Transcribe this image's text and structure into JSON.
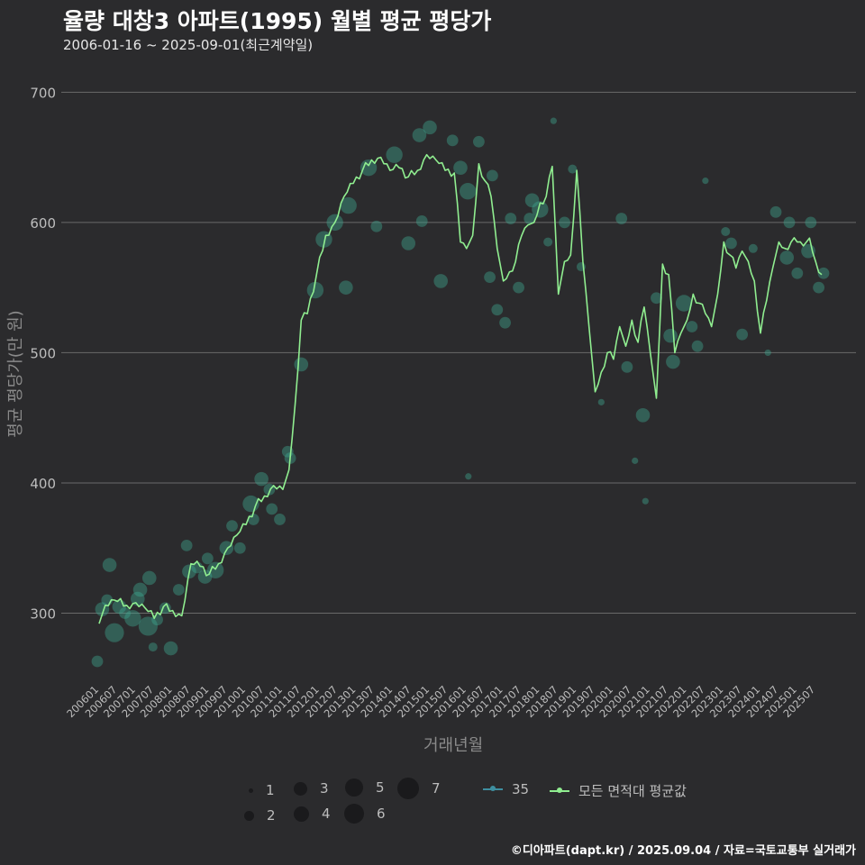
{
  "title": "율량 대창3 아파트(1995) 월별 평균 평당가",
  "subtitle": "2006-01-16 ~ 2025-09-01(최근계약일)",
  "caption": "©디아파트(dapt.kr) / 2025.09.04 / 자료=국토교통부 실거래가",
  "colors": {
    "line": "#90ee90",
    "point": "#3ea88f",
    "grid": "#6a6a6a",
    "bg": "#2b2b2d"
  },
  "legend": {
    "sizes": [
      "1",
      "2",
      "3",
      "4",
      "5",
      "6",
      "7"
    ],
    "series": [
      {
        "name": "35",
        "color": "#3e8fa0"
      },
      {
        "name": "모든 면적대 평균값",
        "color": "#90ee90"
      }
    ]
  },
  "chart_data": {
    "type": "line",
    "title": "율량 대창3 아파트(1995) 월별 평균 평당가",
    "xlabel": "거래년월",
    "ylabel": "평균 평당가(만 원)",
    "ylim": [
      245,
      712
    ],
    "yticks": [
      300,
      400,
      500,
      600,
      700
    ],
    "xtick_labels": [
      "200601",
      "200607",
      "200701",
      "200707",
      "200801",
      "200807",
      "200901",
      "200907",
      "201001",
      "201007",
      "201101",
      "201107",
      "201201",
      "201207",
      "201301",
      "201307",
      "201401",
      "201407",
      "201501",
      "201507",
      "201601",
      "201607",
      "201701",
      "201707",
      "201801",
      "201807",
      "201901",
      "201907",
      "202001",
      "202007",
      "202101",
      "202107",
      "202201",
      "202207",
      "202301",
      "202307",
      "202401",
      "202407",
      "202501",
      "202507"
    ],
    "x_start": "2006-01",
    "x_end": "2025-09",
    "average_line_anchors": [
      [
        "2006-01",
        292
      ],
      [
        "2006-03",
        306
      ],
      [
        "2006-06",
        310
      ],
      [
        "2006-10",
        306
      ],
      [
        "2007-01",
        308
      ],
      [
        "2007-04",
        304
      ],
      [
        "2007-07",
        296
      ],
      [
        "2007-10",
        305
      ],
      [
        "2008-01",
        302
      ],
      [
        "2008-04",
        298
      ],
      [
        "2008-07",
        338
      ],
      [
        "2008-10",
        336
      ],
      [
        "2009-01",
        330
      ],
      [
        "2009-04",
        338
      ],
      [
        "2009-07",
        350
      ],
      [
        "2009-10",
        360
      ],
      [
        "2010-01",
        368
      ],
      [
        "2010-04",
        382
      ],
      [
        "2010-07",
        390
      ],
      [
        "2010-10",
        398
      ],
      [
        "2011-01",
        395
      ],
      [
        "2011-03",
        410
      ],
      [
        "2011-05",
        460
      ],
      [
        "2011-07",
        525
      ],
      [
        "2011-09",
        530
      ],
      [
        "2011-12",
        560
      ],
      [
        "2012-03",
        590
      ],
      [
        "2012-06",
        600
      ],
      [
        "2012-09",
        620
      ],
      [
        "2012-12",
        630
      ],
      [
        "2013-03",
        640
      ],
      [
        "2013-06",
        648
      ],
      [
        "2013-09",
        650
      ],
      [
        "2013-12",
        640
      ],
      [
        "2014-03",
        642
      ],
      [
        "2014-06",
        635
      ],
      [
        "2014-09",
        640
      ],
      [
        "2014-12",
        652
      ],
      [
        "2015-03",
        648
      ],
      [
        "2015-06",
        640
      ],
      [
        "2015-09",
        638
      ],
      [
        "2015-11",
        585
      ],
      [
        "2016-01",
        580
      ],
      [
        "2016-03",
        590
      ],
      [
        "2016-05",
        645
      ],
      [
        "2016-07",
        632
      ],
      [
        "2016-09",
        620
      ],
      [
        "2016-11",
        580
      ],
      [
        "2017-01",
        555
      ],
      [
        "2017-03",
        562
      ],
      [
        "2017-05",
        570
      ],
      [
        "2017-07",
        590
      ],
      [
        "2017-09",
        598
      ],
      [
        "2017-11",
        600
      ],
      [
        "2018-01",
        615
      ],
      [
        "2018-03",
        620
      ],
      [
        "2018-05",
        643
      ],
      [
        "2018-07",
        545
      ],
      [
        "2018-09",
        570
      ],
      [
        "2018-11",
        575
      ],
      [
        "2019-01",
        640
      ],
      [
        "2019-03",
        570
      ],
      [
        "2019-05",
        520
      ],
      [
        "2019-07",
        470
      ],
      [
        "2019-09",
        485
      ],
      [
        "2019-11",
        500
      ],
      [
        "2020-01",
        495
      ],
      [
        "2020-03",
        520
      ],
      [
        "2020-05",
        505
      ],
      [
        "2020-07",
        525
      ],
      [
        "2020-09",
        508
      ],
      [
        "2020-11",
        535
      ],
      [
        "2021-01",
        500
      ],
      [
        "2021-03",
        465
      ],
      [
        "2021-05",
        568
      ],
      [
        "2021-07",
        560
      ],
      [
        "2021-09",
        500
      ],
      [
        "2021-11",
        515
      ],
      [
        "2022-01",
        525
      ],
      [
        "2022-03",
        545
      ],
      [
        "2022-05",
        538
      ],
      [
        "2022-07",
        530
      ],
      [
        "2022-09",
        520
      ],
      [
        "2022-11",
        545
      ],
      [
        "2023-01",
        585
      ],
      [
        "2023-03",
        575
      ],
      [
        "2023-05",
        565
      ],
      [
        "2023-07",
        578
      ],
      [
        "2023-09",
        570
      ],
      [
        "2023-11",
        555
      ],
      [
        "2024-01",
        515
      ],
      [
        "2024-03",
        540
      ],
      [
        "2024-05",
        565
      ],
      [
        "2024-07",
        585
      ],
      [
        "2024-09",
        580
      ],
      [
        "2024-11",
        585
      ],
      [
        "2025-01",
        585
      ],
      [
        "2025-03",
        582
      ],
      [
        "2025-05",
        588
      ],
      [
        "2025-07",
        570
      ],
      [
        "2025-09",
        560
      ]
    ],
    "bubbles": [
      [
        "2006-01",
        263,
        3
      ],
      [
        "2006-02",
        303,
        4
      ],
      [
        "2006-03",
        310,
        3
      ],
      [
        "2006-05",
        337,
        4
      ],
      [
        "2006-06",
        285,
        6
      ],
      [
        "2006-07",
        305,
        4
      ],
      [
        "2006-10",
        300,
        3
      ],
      [
        "2006-12",
        296,
        5
      ],
      [
        "2007-01",
        311,
        4
      ],
      [
        "2007-03",
        318,
        4
      ],
      [
        "2007-05",
        290,
        6
      ],
      [
        "2007-06",
        274,
        2
      ],
      [
        "2007-06",
        327,
        4
      ],
      [
        "2007-08",
        295,
        3
      ],
      [
        "2007-10",
        304,
        3
      ],
      [
        "2008-01",
        273,
        4
      ],
      [
        "2008-03",
        318,
        3
      ],
      [
        "2008-05",
        352,
        3
      ],
      [
        "2008-07",
        332,
        4
      ],
      [
        "2008-09",
        335,
        3
      ],
      [
        "2008-11",
        328,
        4
      ],
      [
        "2009-01",
        342,
        3
      ],
      [
        "2009-03",
        333,
        5
      ],
      [
        "2009-06",
        350,
        4
      ],
      [
        "2009-09",
        367,
        3
      ],
      [
        "2009-11",
        350,
        3
      ],
      [
        "2010-02",
        384,
        5
      ],
      [
        "2010-04",
        372,
        3
      ],
      [
        "2010-06",
        403,
        4
      ],
      [
        "2010-08",
        395,
        3
      ],
      [
        "2010-10",
        380,
        3
      ],
      [
        "2010-12",
        372,
        3
      ],
      [
        "2011-02",
        424,
        3
      ],
      [
        "2011-04",
        419,
        3
      ],
      [
        "2011-07",
        491,
        4
      ],
      [
        "2011-11",
        548,
        5
      ],
      [
        "2012-03",
        587,
        5
      ],
      [
        "2012-06",
        600,
        5
      ],
      [
        "2012-09",
        550,
        4
      ],
      [
        "2012-11",
        613,
        5
      ],
      [
        "2013-05",
        642,
        5
      ],
      [
        "2013-07",
        597,
        3
      ],
      [
        "2014-02",
        652,
        5
      ],
      [
        "2014-06",
        584,
        4
      ],
      [
        "2014-09",
        667,
        4
      ],
      [
        "2014-11",
        601,
        3
      ],
      [
        "2015-01",
        673,
        4
      ],
      [
        "2015-04",
        555,
        4
      ],
      [
        "2015-09",
        663,
        3
      ],
      [
        "2015-11",
        642,
        4
      ],
      [
        "2016-01",
        405,
        1
      ],
      [
        "2016-02",
        624,
        5
      ],
      [
        "2016-05",
        662,
        3
      ],
      [
        "2016-08",
        558,
        3
      ],
      [
        "2016-10",
        636,
        3
      ],
      [
        "2016-11",
        533,
        3
      ],
      [
        "2017-01",
        523,
        3
      ],
      [
        "2017-04",
        603,
        3
      ],
      [
        "2017-06",
        550,
        3
      ],
      [
        "2017-09",
        603,
        3
      ],
      [
        "2017-11",
        617,
        4
      ],
      [
        "2018-01",
        610,
        5
      ],
      [
        "2018-03",
        585,
        2
      ],
      [
        "2018-06",
        678,
        1
      ],
      [
        "2018-09",
        600,
        3
      ],
      [
        "2018-11",
        641,
        2
      ],
      [
        "2019-03",
        566,
        2
      ],
      [
        "2019-09",
        462,
        1
      ],
      [
        "2020-03",
        603,
        3
      ],
      [
        "2020-06",
        489,
        3
      ],
      [
        "2020-08",
        417,
        1
      ],
      [
        "2020-10",
        452,
        4
      ],
      [
        "2020-12",
        386,
        1
      ],
      [
        "2021-03",
        542,
        3
      ],
      [
        "2021-07",
        513,
        4
      ],
      [
        "2021-09",
        493,
        4
      ],
      [
        "2021-12",
        538,
        5
      ],
      [
        "2022-02",
        520,
        3
      ],
      [
        "2022-05",
        505,
        3
      ],
      [
        "2022-07",
        632,
        1
      ],
      [
        "2023-01",
        593,
        2
      ],
      [
        "2023-04",
        584,
        3
      ],
      [
        "2023-07",
        514,
        3
      ],
      [
        "2023-10",
        580,
        2
      ],
      [
        "2024-04",
        500,
        1
      ],
      [
        "2024-06",
        608,
        3
      ],
      [
        "2024-09",
        573,
        4
      ],
      [
        "2024-11",
        600,
        3
      ],
      [
        "2025-01",
        561,
        3
      ],
      [
        "2025-04",
        578,
        4
      ],
      [
        "2025-06",
        600,
        3
      ],
      [
        "2025-08",
        550,
        3
      ],
      [
        "2025-09",
        561,
        3
      ]
    ]
  }
}
